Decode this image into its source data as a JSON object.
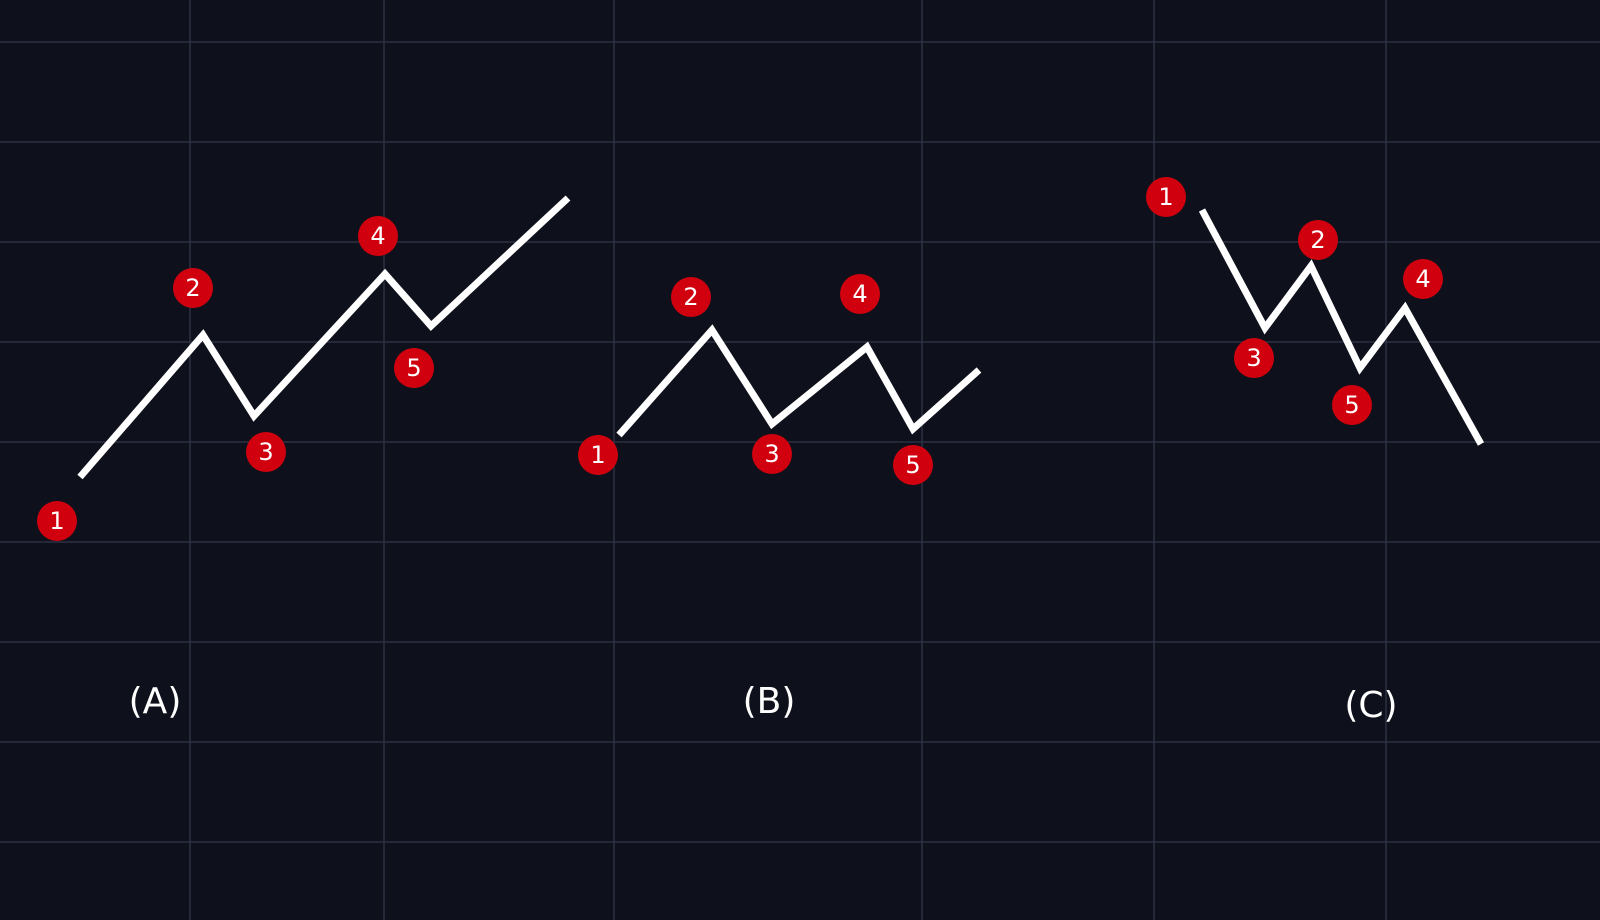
{
  "colors": {
    "background": "#0e111b",
    "grid": "#2b3142",
    "line": "#ffffff",
    "badge": "#d0000e",
    "badge_text": "#ffffff"
  },
  "panels": [
    {
      "caption": "(A)",
      "points": [
        {
          "label": "1"
        },
        {
          "label": "2"
        },
        {
          "label": "3"
        },
        {
          "label": "4"
        },
        {
          "label": "5"
        }
      ]
    },
    {
      "caption": "(B)",
      "points": [
        {
          "label": "1"
        },
        {
          "label": "2"
        },
        {
          "label": "3"
        },
        {
          "label": "4"
        },
        {
          "label": "5"
        }
      ]
    },
    {
      "caption": "(C)",
      "points": [
        {
          "label": "1"
        },
        {
          "label": "2"
        },
        {
          "label": "3"
        },
        {
          "label": "4"
        },
        {
          "label": "5"
        }
      ]
    }
  ]
}
